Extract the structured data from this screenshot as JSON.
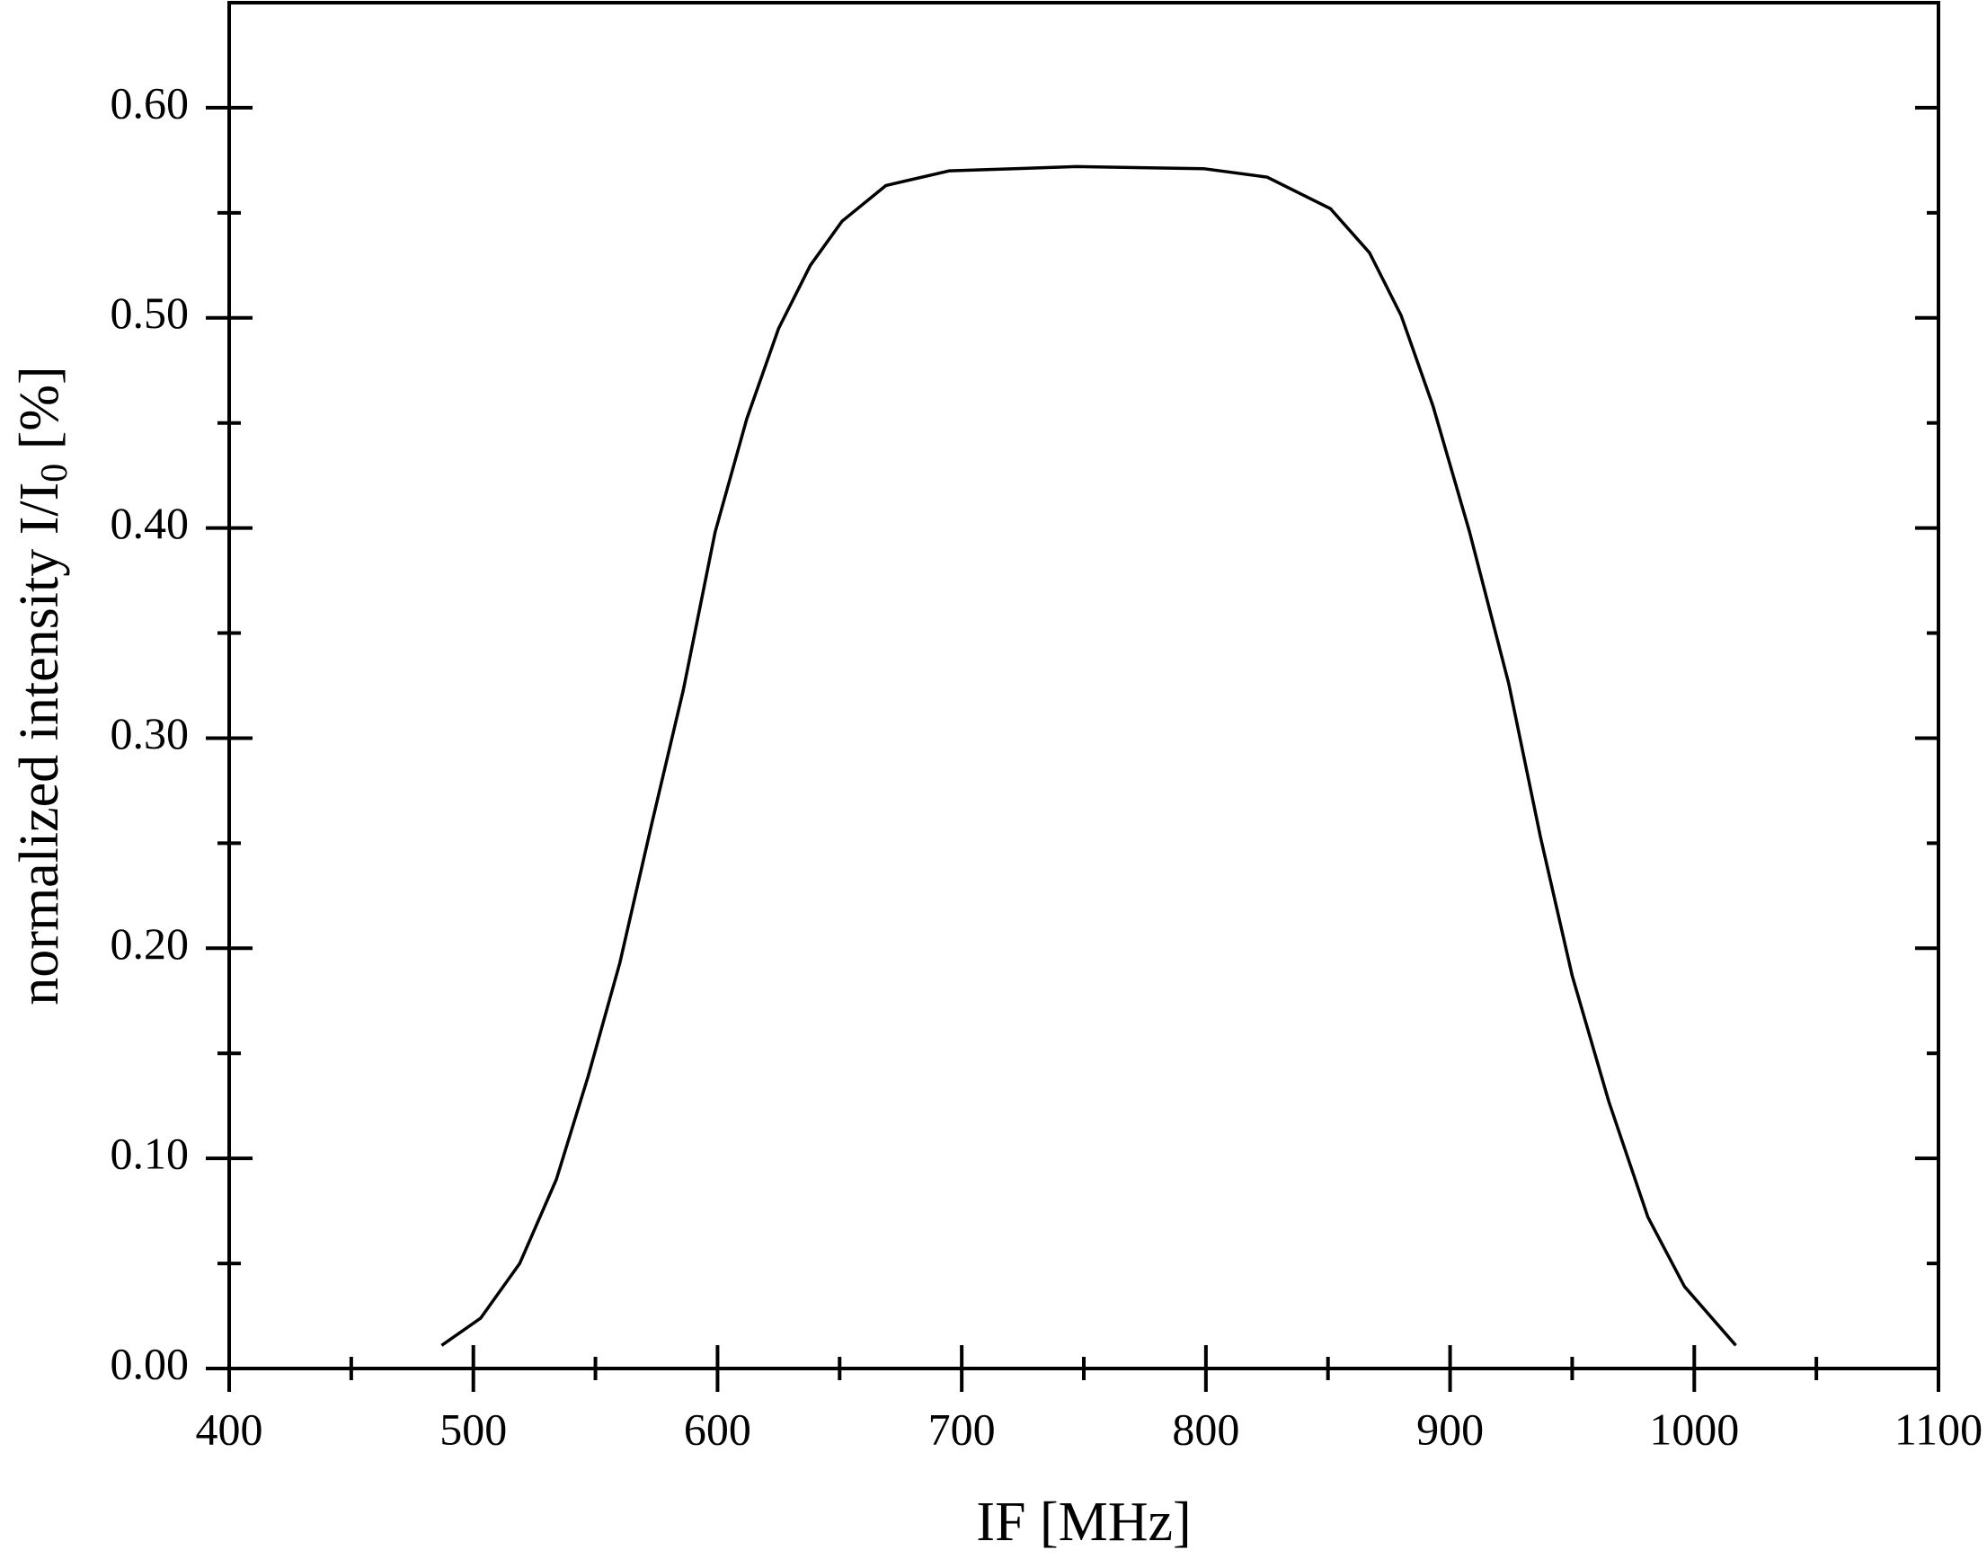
{
  "chart_data": {
    "type": "line",
    "xlabel": "IF [MHz]",
    "ylabel": [
      "normalized intensity I/I",
      "0",
      " [%]"
    ],
    "x": [
      487,
      503,
      519,
      534,
      547,
      560,
      573,
      586,
      599,
      612,
      625,
      638,
      651,
      669,
      695,
      747,
      799,
      825,
      851,
      867,
      880,
      893,
      908,
      924,
      937,
      950,
      965,
      981,
      996,
      1017
    ],
    "series": [
      {
        "color": "#000000",
        "values": [
          0.011,
          0.024,
          0.05,
          0.09,
          0.139,
          0.193,
          0.259,
          0.323,
          0.398,
          0.452,
          0.495,
          0.525,
          0.546,
          0.563,
          0.57,
          0.572,
          0.571,
          0.567,
          0.552,
          0.531,
          0.501,
          0.458,
          0.398,
          0.326,
          0.253,
          0.187,
          0.127,
          0.072,
          0.039,
          0.011
        ]
      }
    ],
    "xlim": [
      400,
      1100
    ],
    "xticks": [
      400,
      500,
      600,
      700,
      800,
      900,
      1000,
      1100
    ],
    "xminorticks": [
      450,
      550,
      650,
      750,
      850,
      950,
      1050
    ],
    "ylim": [
      0,
      0.65
    ],
    "yticks": [
      {
        "value": 0,
        "label": "0.00"
      },
      {
        "value": 0.1,
        "label": "0.10"
      },
      {
        "value": 0.2,
        "label": "0.20"
      },
      {
        "value": 0.3,
        "label": "0.30"
      },
      {
        "value": 0.4,
        "label": "0.40"
      },
      {
        "value": 0.5,
        "label": "0.50"
      },
      {
        "value": 0.6,
        "label": "0.60"
      }
    ],
    "yminorticks": [
      0.05,
      0.15,
      0.25,
      0.35,
      0.45,
      0.55
    ],
    "grid": false
  }
}
